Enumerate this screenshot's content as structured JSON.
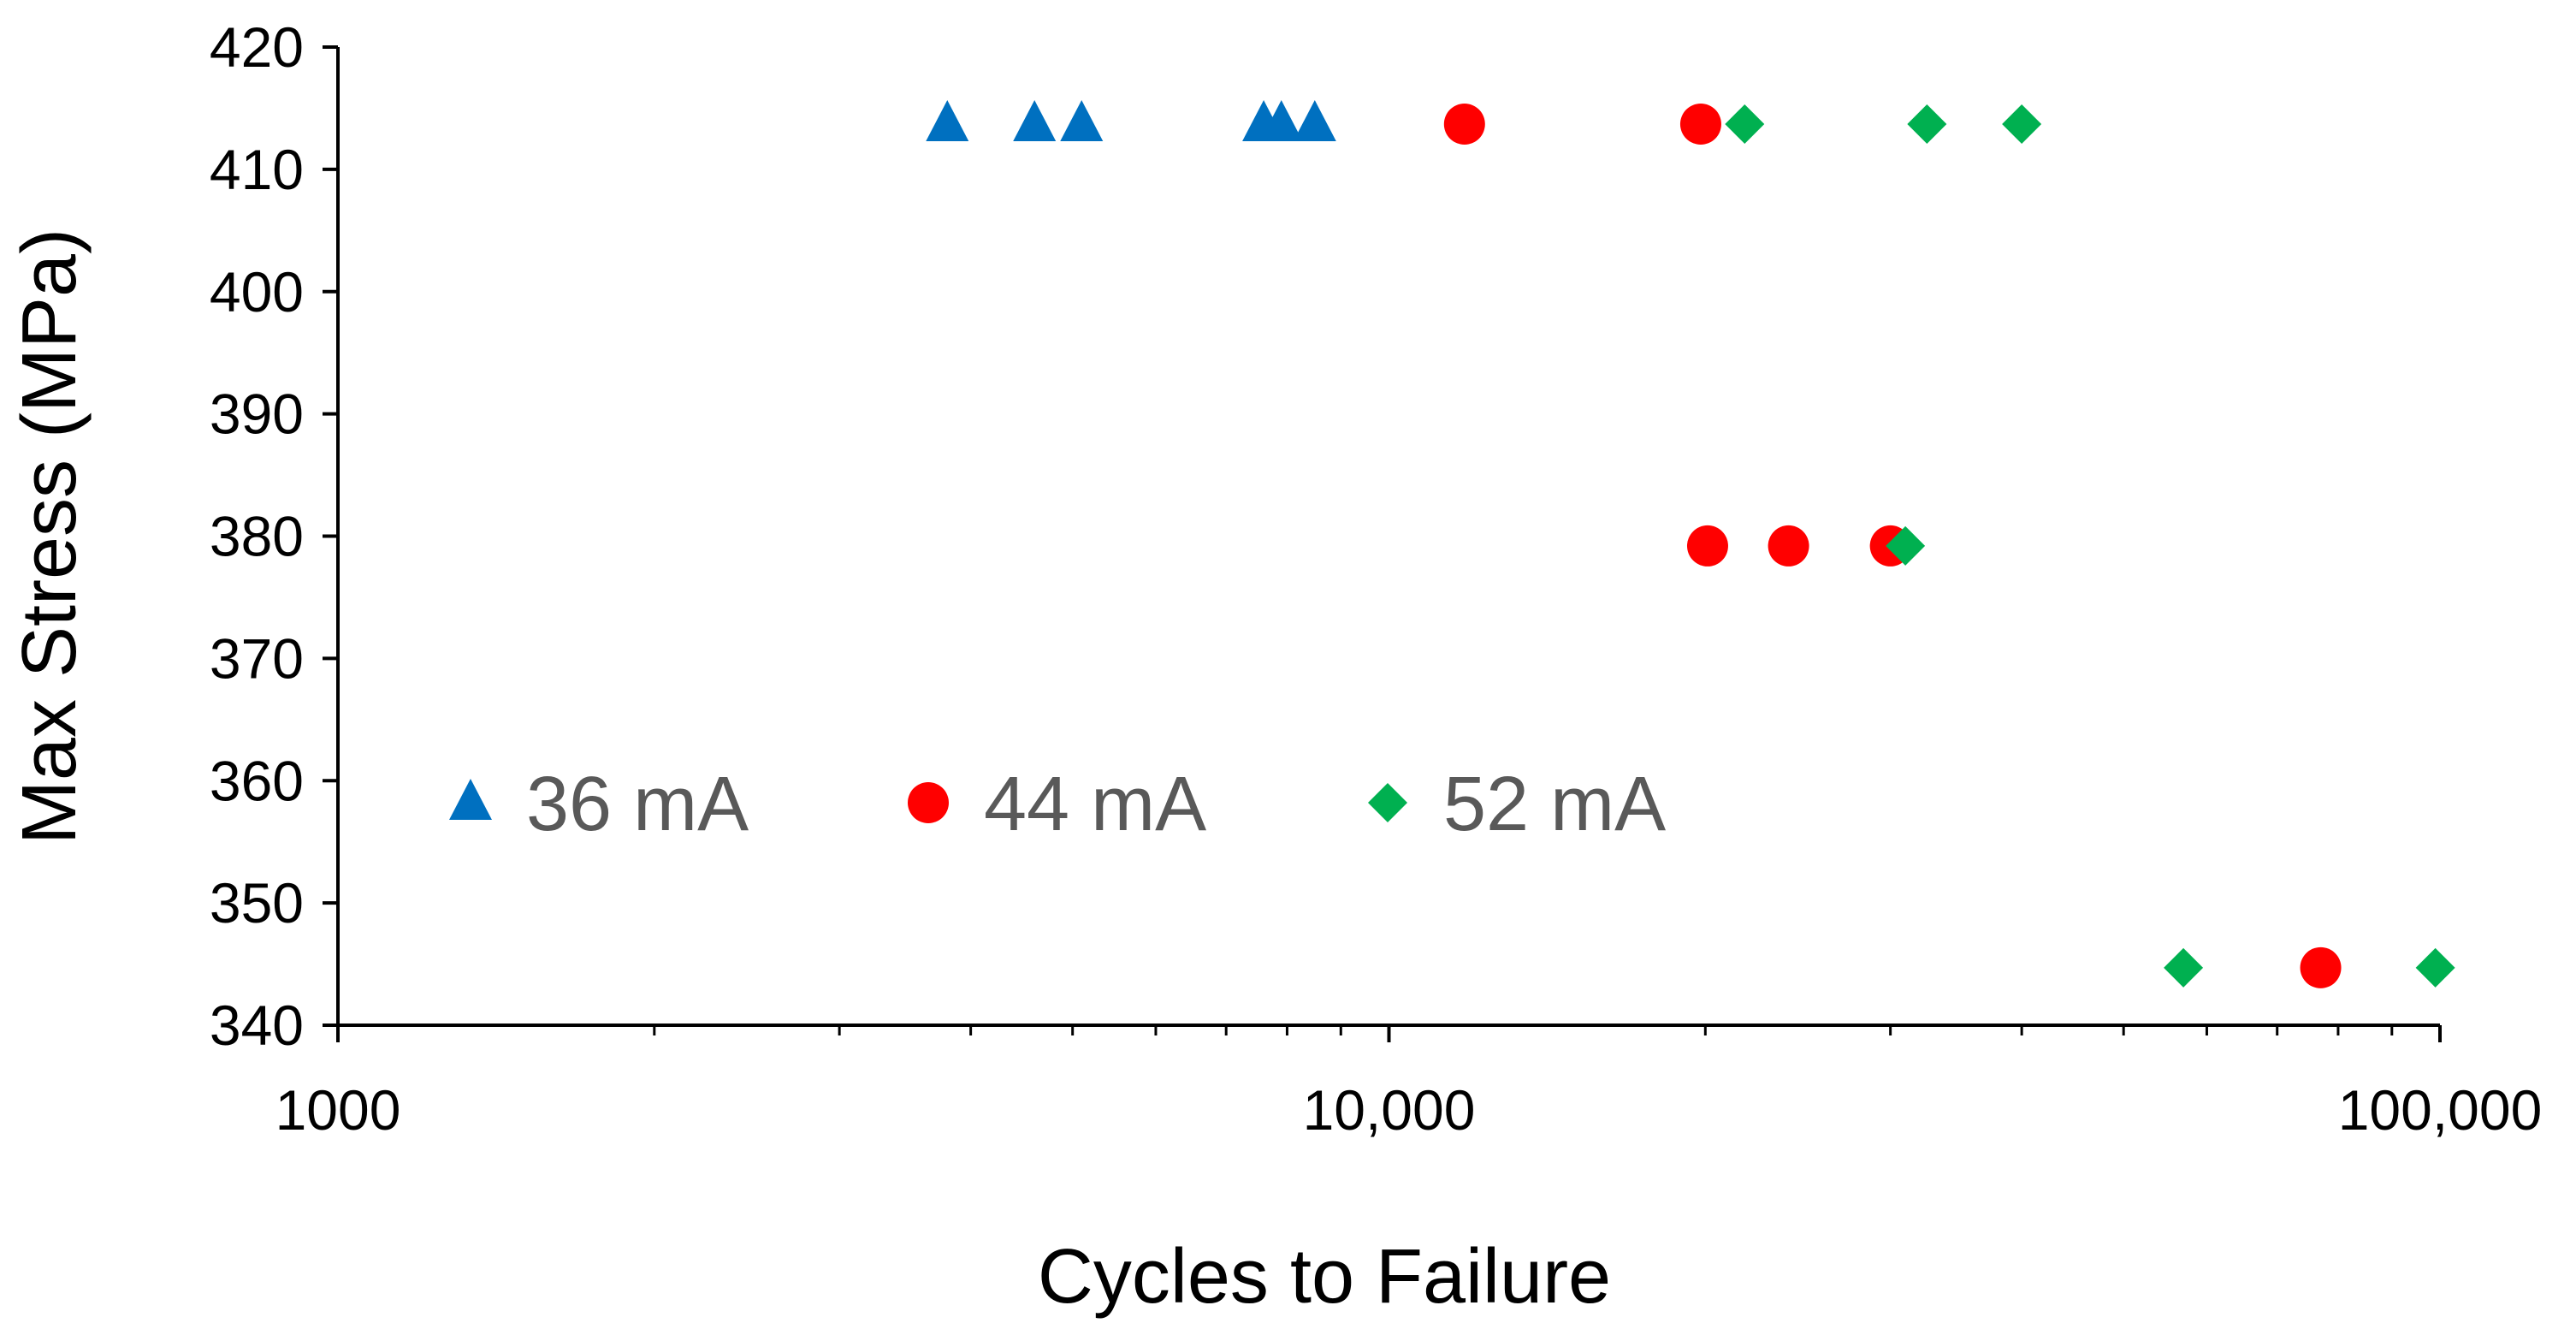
{
  "chart_data": {
    "type": "scatter",
    "title": "",
    "xlabel": "Cycles to Failure",
    "ylabel": "Max Stress  (MPa)",
    "xscale": "log",
    "xlim": [
      1000,
      100000
    ],
    "ylim": [
      340,
      420
    ],
    "grid": false,
    "legend_position": "inside-lower-left",
    "x_ticks_major": [
      {
        "value": 1000,
        "label": "1000"
      },
      {
        "value": 10000,
        "label": "10,000"
      },
      {
        "value": 100000,
        "label": "100,000"
      }
    ],
    "x_ticks_minor": [
      2000,
      3000,
      4000,
      5000,
      6000,
      7000,
      8000,
      9000,
      20000,
      30000,
      40000,
      50000,
      60000,
      70000,
      80000,
      90000
    ],
    "y_ticks": [
      {
        "value": 340,
        "label": "340"
      },
      {
        "value": 350,
        "label": "350"
      },
      {
        "value": 360,
        "label": "360"
      },
      {
        "value": 370,
        "label": "370"
      },
      {
        "value": 380,
        "label": "380"
      },
      {
        "value": 390,
        "label": "390"
      },
      {
        "value": 400,
        "label": "400"
      },
      {
        "value": 410,
        "label": "410"
      },
      {
        "value": 420,
        "label": "420"
      }
    ],
    "series": [
      {
        "name": "36 mA",
        "marker": "triangle",
        "color": "#0070C0",
        "points": [
          {
            "x": 3800,
            "y": 413.7
          },
          {
            "x": 4600,
            "y": 413.7
          },
          {
            "x": 5100,
            "y": 413.7
          },
          {
            "x": 7600,
            "y": 413.7
          },
          {
            "x": 7900,
            "y": 413.7
          },
          {
            "x": 8500,
            "y": 413.7
          }
        ]
      },
      {
        "name": "44 mA",
        "marker": "circle",
        "color": "#FF0000",
        "points": [
          {
            "x": 11800,
            "y": 413.7
          },
          {
            "x": 19800,
            "y": 413.7
          },
          {
            "x": 20100,
            "y": 379.2
          },
          {
            "x": 24000,
            "y": 379.2
          },
          {
            "x": 30000,
            "y": 379.2
          },
          {
            "x": 77000,
            "y": 344.7
          }
        ]
      },
      {
        "name": "52 mA",
        "marker": "diamond",
        "color": "#00B050",
        "points": [
          {
            "x": 21800,
            "y": 413.7
          },
          {
            "x": 32500,
            "y": 413.7
          },
          {
            "x": 40000,
            "y": 413.7
          },
          {
            "x": 31000,
            "y": 379.2
          },
          {
            "x": 57000,
            "y": 344.7
          },
          {
            "x": 99000,
            "y": 344.7
          }
        ]
      }
    ]
  }
}
